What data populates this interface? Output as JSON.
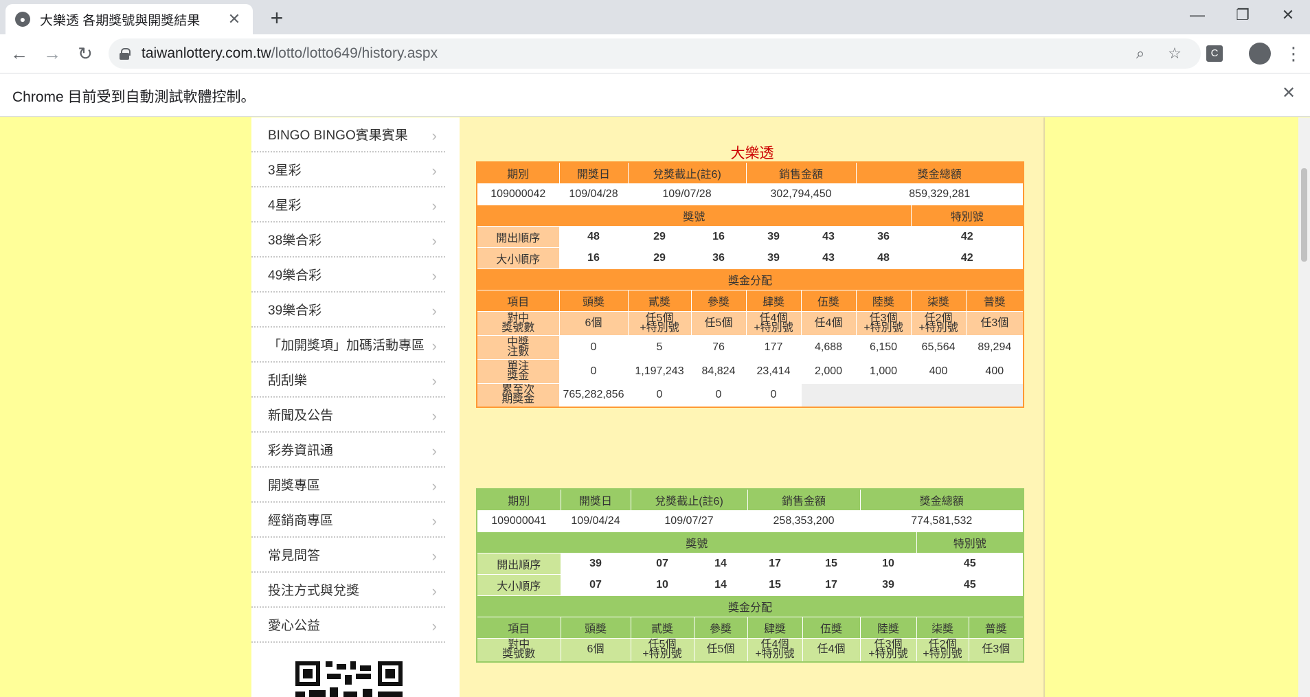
{
  "browser": {
    "tab_title": "大樂透 各期獎號與開獎結果",
    "url_host": "taiwanlottery.com.tw",
    "url_path": "/lotto/lotto649/history.aspx",
    "infobar_text": "Chrome 目前受到自動測試軟體控制。"
  },
  "sidebar": {
    "items": [
      "BINGO BINGO賓果賓果",
      "3星彩",
      "4星彩",
      "38樂合彩",
      "49樂合彩",
      "39樂合彩",
      "「加開獎項」加碼活動專區",
      "刮刮樂",
      "新聞及公告",
      "彩券資訊通",
      "開獎專區",
      "經銷商專區",
      "常見問答",
      "投注方式與兌獎",
      "愛心公益"
    ]
  },
  "page": {
    "lotto_title": "大樂透",
    "headers": {
      "period": "期別",
      "draw_date": "開獎日",
      "deadline": "兌獎截止(註6)",
      "sales": "銷售金額",
      "prize_total": "獎金總額",
      "numbers": "獎號",
      "special": "特別號",
      "draw_order": "開出順序",
      "size_order": "大小順序",
      "prize_dist": "獎金分配",
      "item": "項目",
      "match_label": "對中\n獎號數",
      "winners_label": "中獎\n注數",
      "unit_label": "單注\n獎金",
      "accum_label": "累至次\n期獎金"
    },
    "prize_names": [
      "頭獎",
      "貳獎",
      "參獎",
      "肆獎",
      "伍獎",
      "陸獎",
      "柒獎",
      "普獎"
    ],
    "match_rules": [
      "6個",
      "任5個\n+特別號",
      "任5個",
      "任4個\n+特別號",
      "任4個",
      "任3個\n+特別號",
      "任2個\n+特別號",
      "任3個"
    ],
    "draws": [
      {
        "period": "109000042",
        "draw_date": "109/04/28",
        "deadline": "109/07/28",
        "sales": "302,794,450",
        "prize_total": "859,329,281",
        "draw_order": [
          "48",
          "29",
          "16",
          "39",
          "43",
          "36"
        ],
        "size_order": [
          "16",
          "29",
          "36",
          "39",
          "43",
          "48"
        ],
        "special": "42",
        "winners": [
          "0",
          "5",
          "76",
          "177",
          "4,688",
          "6,150",
          "65,564",
          "89,294"
        ],
        "unit_prize": [
          "0",
          "1,197,243",
          "84,824",
          "23,414",
          "2,000",
          "1,000",
          "400",
          "400"
        ],
        "accumulated": [
          "765,282,856",
          "0",
          "0",
          "0"
        ]
      },
      {
        "period": "109000041",
        "draw_date": "109/04/24",
        "deadline": "109/07/27",
        "sales": "258,353,200",
        "prize_total": "774,581,532",
        "draw_order": [
          "39",
          "07",
          "14",
          "17",
          "15",
          "10"
        ],
        "size_order": [
          "07",
          "10",
          "14",
          "15",
          "17",
          "39"
        ],
        "special": "45"
      }
    ]
  }
}
